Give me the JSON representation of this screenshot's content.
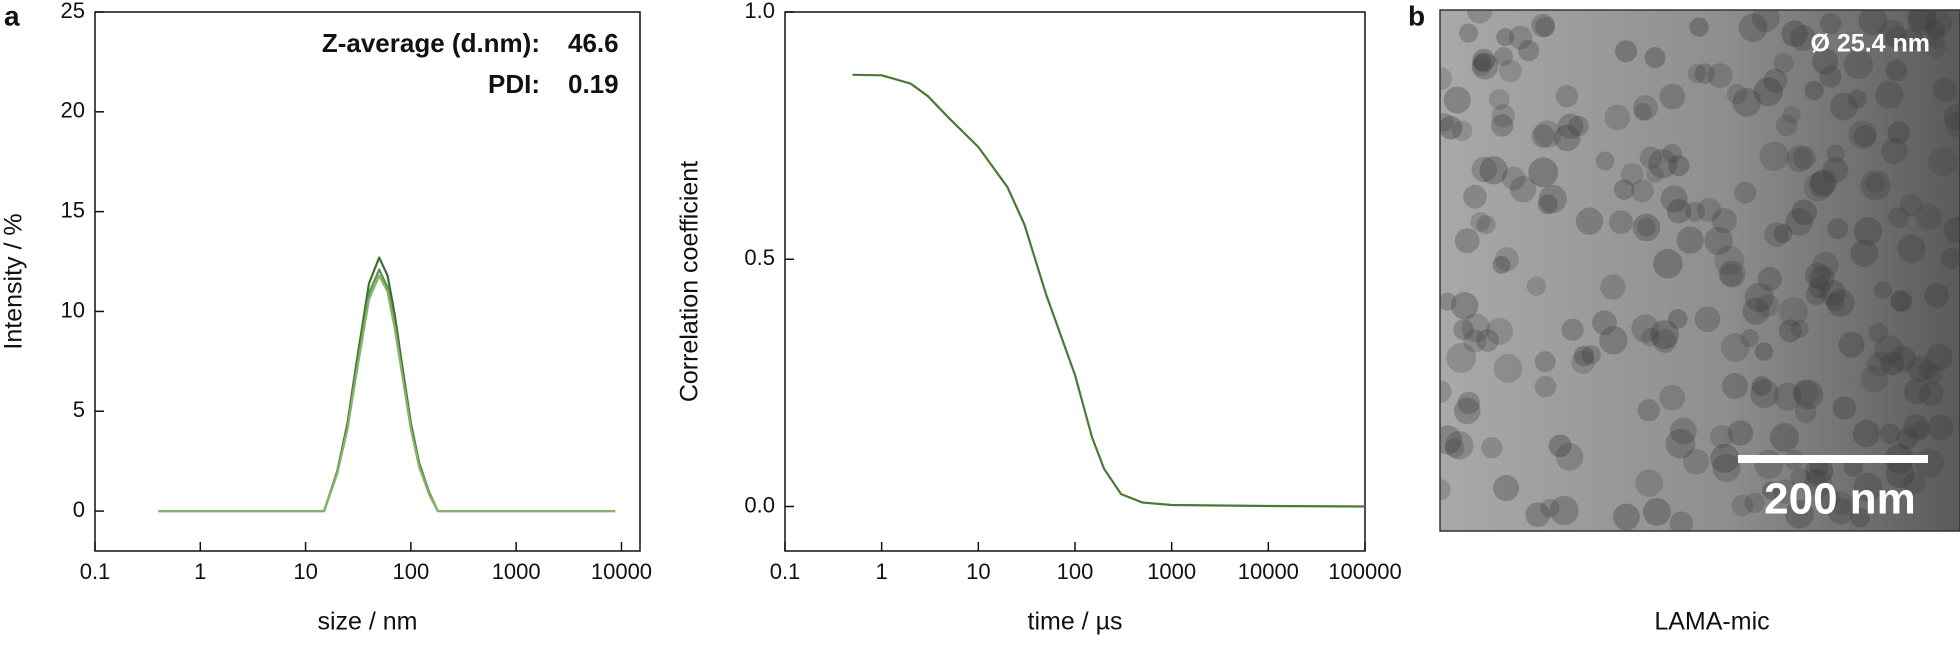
{
  "panel_labels": [
    "a",
    "b"
  ],
  "chart_data": [
    {
      "type": "line",
      "x_scale": "log",
      "xlabel": "size / nm",
      "ylabel": "Intensity / %",
      "xlim": [
        0.1,
        15000
      ],
      "ylim": [
        -2,
        25
      ],
      "xticks": [
        0.1,
        1,
        10,
        100,
        1000,
        10000
      ],
      "yticks": [
        0,
        5,
        10,
        15,
        20,
        25
      ],
      "stats": [
        {
          "label": "Z-average (d.nm):",
          "value": 46.6
        },
        {
          "label": "PDI:",
          "value": 0.19
        }
      ],
      "x": [
        0.4,
        1,
        10,
        15,
        20,
        25,
        30,
        40,
        50,
        60,
        70,
        80,
        100,
        120,
        150,
        180,
        200,
        1000,
        8700
      ],
      "series": [
        {
          "color": "#3f6f2e",
          "values": [
            0,
            0,
            0,
            0,
            2.0,
            4.4,
            7.2,
            11.4,
            12.7,
            11.8,
            9.9,
            7.8,
            4.4,
            2.4,
            0.9,
            0,
            0,
            0,
            0
          ]
        },
        {
          "color": "#5e8f48",
          "values": [
            0,
            0,
            0,
            0,
            1.9,
            4.2,
            6.9,
            10.9,
            12.1,
            11.2,
            9.4,
            7.4,
            4.2,
            2.3,
            0.9,
            0,
            0,
            0,
            0
          ]
        },
        {
          "color": "#86b36c",
          "values": [
            0,
            0,
            0,
            0,
            1.9,
            4.1,
            6.7,
            10.6,
            11.8,
            11.0,
            9.2,
            7.3,
            4.1,
            2.2,
            0.8,
            0,
            0,
            0,
            0
          ]
        }
      ]
    },
    {
      "type": "line",
      "x_scale": "log",
      "xlabel": "time / µs",
      "ylabel": "Correlation coefficient",
      "xlim": [
        0.1,
        100000
      ],
      "ylim": [
        -0.09,
        1.0
      ],
      "xticks": [
        0.1,
        1,
        10,
        100,
        1000,
        10000,
        100000
      ],
      "yticks": [
        {
          "value": 0,
          "label": "0.0"
        },
        0.5,
        {
          "value": 1,
          "label": "1.0"
        }
      ],
      "x": [
        0.5,
        1,
        2,
        3,
        5,
        10,
        20,
        30,
        50,
        100,
        150,
        200,
        300,
        500,
        1000,
        10000,
        100000
      ],
      "series": [
        {
          "color": "#4a7a36",
          "values": [
            0.873,
            0.872,
            0.855,
            0.83,
            0.785,
            0.727,
            0.646,
            0.57,
            0.43,
            0.266,
            0.14,
            0.076,
            0.025,
            0.008,
            0.003,
            0.001,
            0
          ]
        }
      ]
    }
  ],
  "image": {
    "size_label": "Ø 25.4 nm",
    "scale_bar": "200 nm",
    "caption": "LAMA-mic"
  }
}
